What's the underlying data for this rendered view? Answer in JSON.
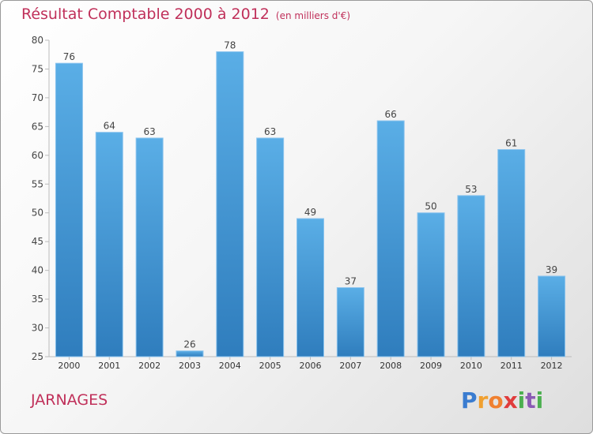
{
  "header": {
    "title": "Résultat Comptable 2000 à 2012",
    "subtitle": "(en milliers d'€)"
  },
  "footer": {
    "place": "JARNAGES",
    "logo_letters": [
      "P",
      "r",
      "o",
      "x",
      "i",
      "t",
      "i"
    ]
  },
  "colors": {
    "title": "#c0305a",
    "bar_top": "#5aaee6",
    "bar_bottom": "#2f7dbd",
    "logo": [
      "#3a7cd0",
      "#f0a030",
      "#f08030",
      "#e03c3c",
      "#4caf50",
      "#8b5ab4",
      "#4caf50"
    ]
  },
  "chart_data": {
    "type": "bar",
    "title": "Résultat Comptable 2000 à 2012",
    "subtitle": "(en milliers d'€)",
    "xlabel": "",
    "ylabel": "",
    "categories": [
      "2000",
      "2001",
      "2002",
      "2003",
      "2004",
      "2005",
      "2006",
      "2007",
      "2008",
      "2009",
      "2010",
      "2011",
      "2012"
    ],
    "values": [
      76,
      64,
      63,
      26,
      78,
      63,
      49,
      37,
      66,
      50,
      53,
      61,
      39
    ],
    "ylim": [
      25,
      80
    ],
    "yticks": [
      25,
      30,
      35,
      40,
      45,
      50,
      55,
      60,
      65,
      70,
      75,
      80
    ],
    "grid": false
  }
}
